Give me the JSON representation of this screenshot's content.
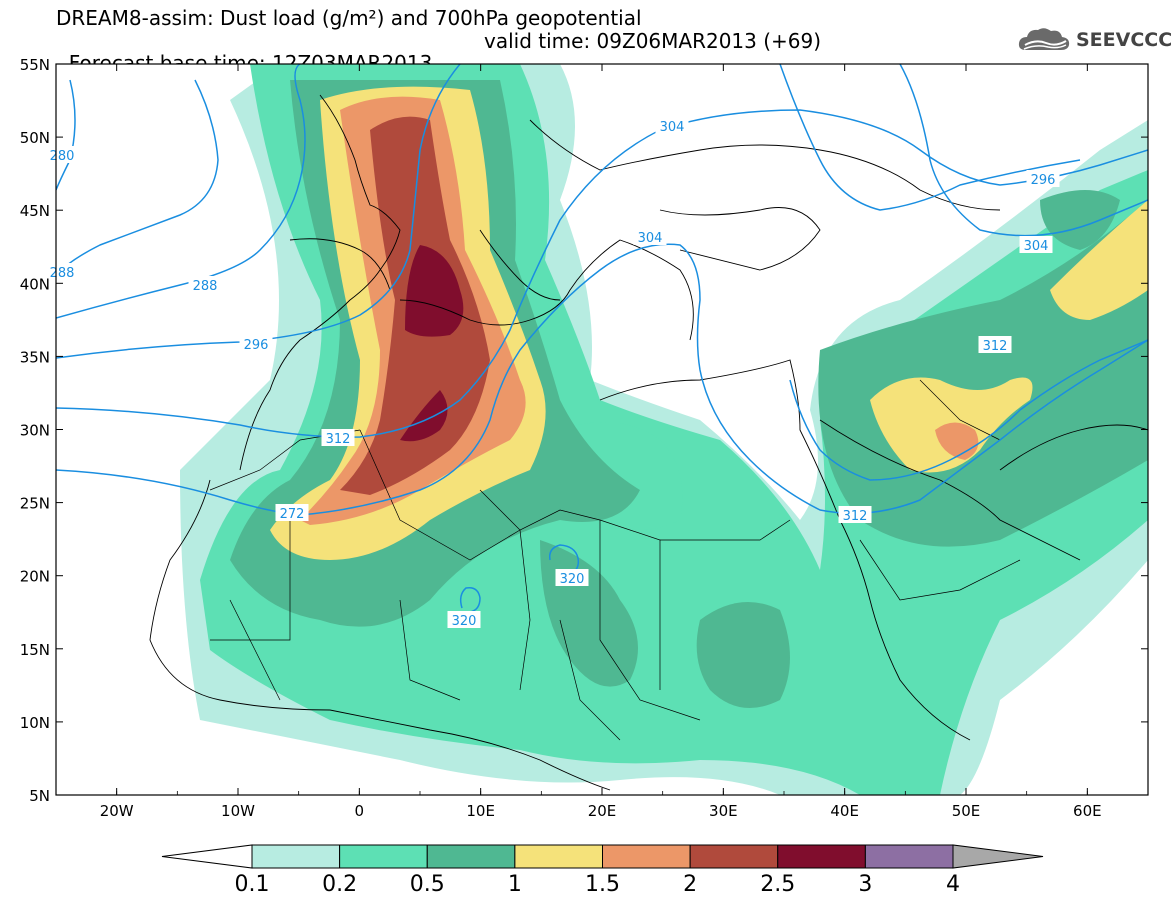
{
  "title_line1": "DREAM8-assim: Dust load (g/m²) and 700hPa geopotential",
  "title_line2_base": "Forecast base time: 12Z03MAR2013",
  "title_line2_valid": "valid time: 09Z06MAR2013 (+69)",
  "logo": {
    "icon": "cloud-logo-icon",
    "text": "SEEVCCC"
  },
  "axes": {
    "lat_labels": [
      "55N",
      "50N",
      "45N",
      "40N",
      "35N",
      "30N",
      "25N",
      "20N",
      "15N",
      "10N",
      "5N"
    ],
    "lon_labels": [
      "20W",
      "10W",
      "0",
      "10E",
      "20E",
      "30E",
      "40E",
      "50E",
      "60E"
    ]
  },
  "contour_labels": [
    "304",
    "288",
    "296",
    "312",
    "272",
    "280",
    "288",
    "296",
    "304",
    "312",
    "320",
    "320",
    "312",
    "304"
  ],
  "colorbar": {
    "labels": [
      "0.1",
      "0.2",
      "0.5",
      "1",
      "1.5",
      "2",
      "2.5",
      "3",
      "4"
    ],
    "colors": [
      "#b7ece1",
      "#5de0b4",
      "#4fb892",
      "#f5e27a",
      "#ec9768",
      "#b04a3c",
      "#800d2d",
      "#8d6fa3"
    ],
    "low_color": "#ffffff",
    "high_color": "#a8a8a8"
  },
  "contour_color": "#1a8ee0"
}
